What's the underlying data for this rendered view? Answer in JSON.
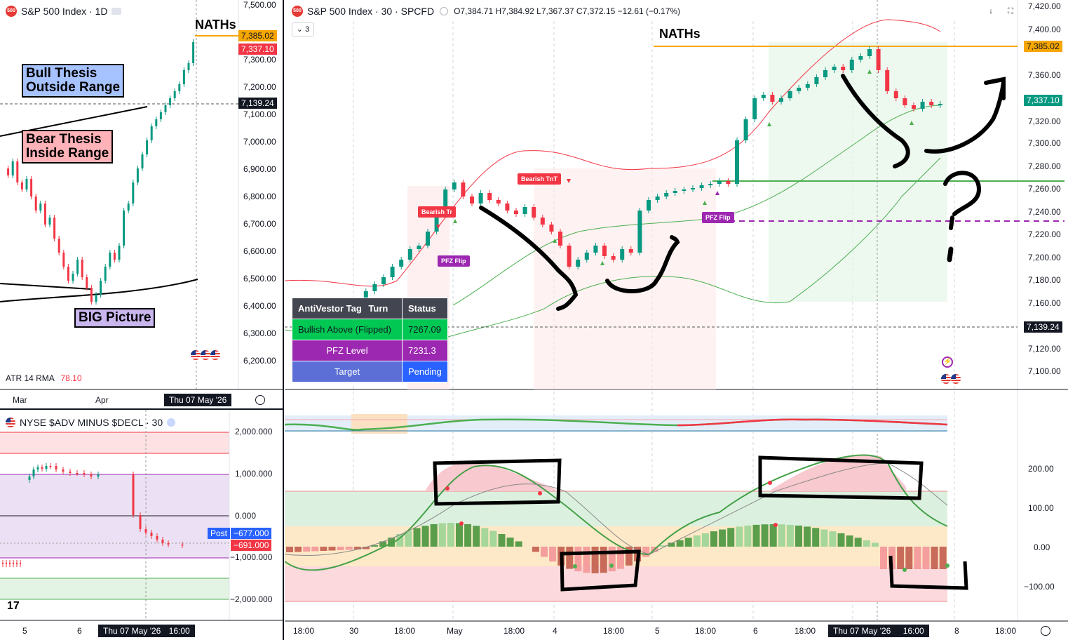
{
  "left_chart": {
    "title": "S&P 500 Index · 1D",
    "annotation_naths": "NATHs",
    "bull_box": [
      "Bull Thesis",
      "Outside Range"
    ],
    "bear_box": [
      "Bear Thesis",
      "Inside Range"
    ],
    "big_picture": "BIG Picture",
    "atr_label": "ATR 14 RMA",
    "atr_value": "78.10",
    "y_ticks": [
      "7,500.00",
      "7,300.00",
      "7,200.00",
      "7,100.00",
      "7,000.00",
      "6,900.00",
      "6,800.00",
      "6,700.00",
      "6,600.00",
      "6,500.00",
      "6,400.00",
      "6,300.00",
      "6,200.00"
    ],
    "price_tags": {
      "naths": "7,385.02",
      "last": "7,337.10",
      "cross": "7,139.24"
    },
    "x_ticks": [
      "Mar",
      "Apr"
    ],
    "cursor_date": "Thu 07 May '26"
  },
  "adv_chart": {
    "title": "NYSE $ADV MINUS $DECL · 30",
    "y_ticks": [
      "2,000.000",
      "1,000.000",
      "0.000",
      "−1,000.000",
      "−2,000.000"
    ],
    "post_label": "Post",
    "post_value": "−677.000",
    "last_value": "−691.000",
    "x_ticks": [
      "5",
      "6"
    ],
    "cursor_date": "Thu 07 May '26",
    "cursor_time": "16:00"
  },
  "main_chart": {
    "title": "S&P 500 Index · 30 · SPCFD",
    "ohlc": {
      "o": "7,384.71",
      "h": "7,384.92",
      "l": "7,367.37",
      "c": "7,372.15",
      "chg": "−12.61 (−0.17%)"
    },
    "indicator_count": "3",
    "annotation_naths": "NATHs",
    "y_ticks": [
      "7,420.00",
      "7,400.00",
      "7,360.00",
      "7,340.00",
      "7,320.00",
      "7,300.00",
      "7,280.00",
      "7,260.00",
      "7,240.00",
      "7,220.00",
      "7,200.00",
      "7,180.00",
      "7,160.00",
      "7,120.00",
      "7,100.00"
    ],
    "price_tags": {
      "naths": "7,385.02",
      "last": "7,337.10",
      "cross": "7,139.24"
    },
    "chips": {
      "bearish_tr": "Bearish Tr",
      "bearish_tnt": "Bearish TnT",
      "pfz_flip_1": "PFZ Flip",
      "pfz_flip_2": "PFZ Flip"
    },
    "osc_ticks": [
      "200.00",
      "100.00",
      "0.00",
      "−100.00"
    ],
    "x_ticks": [
      "18:00",
      "30",
      "18:00",
      "May",
      "18:00",
      "4",
      "18:00",
      "5",
      "18:00",
      "6",
      "18:00",
      "8",
      "18:00"
    ],
    "cursor_date": "Thu 07 May '26",
    "cursor_time": "16:00",
    "table": {
      "headers": [
        "AntiVestor Tag",
        "Turn",
        "Status"
      ],
      "rows": [
        [
          "Bullish Above (Flipped)",
          "7267.09"
        ],
        [
          "PFZ Level",
          "7231.3"
        ],
        [
          "Target",
          "Pending"
        ]
      ]
    }
  },
  "colors": {
    "up": "#089981",
    "down": "#f23645",
    "orange": "#f7a600",
    "green_line": "#4caf50",
    "purple": "#9c27b0"
  }
}
